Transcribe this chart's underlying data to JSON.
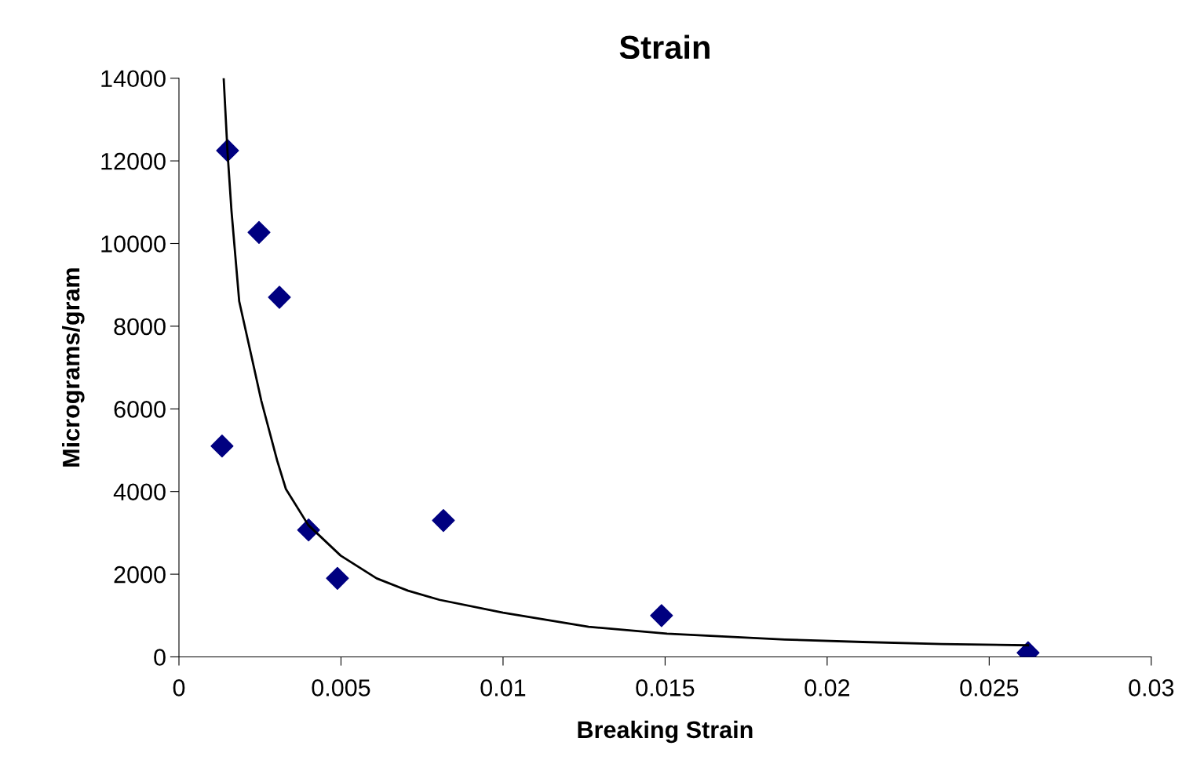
{
  "chart_data": {
    "type": "scatter",
    "title": "Strain",
    "xlabel": "Breaking Strain",
    "ylabel": "Micrograms/gram",
    "xlim": [
      0,
      0.03
    ],
    "xticks": [
      0,
      0.005,
      0.01,
      0.015,
      0.02,
      0.025,
      0.03
    ],
    "ylim": [
      0,
      14000
    ],
    "yticks": [
      0,
      2000,
      4000,
      6000,
      8000,
      10000,
      12000,
      14000
    ],
    "grid": false,
    "legend": false,
    "series": [
      {
        "color": "#000080",
        "marker": "diamond",
        "x": [
          0.00133,
          0.0015,
          0.00247,
          0.0031,
          0.004,
          0.00489,
          0.00816,
          0.01489,
          0.0262
        ],
        "values": [
          5100,
          12250,
          10270,
          8700,
          3070,
          1900,
          3300,
          1000,
          100
        ]
      },
      {
        "type": "line",
        "color": "#000000",
        "marker": "none",
        "line_style": "solid",
        "x": [
          0.00138,
          0.0015,
          0.00162,
          0.00186,
          0.00223,
          0.00254,
          0.00303,
          0.0033,
          0.00399,
          0.00499,
          0.0061,
          0.00707,
          0.00804,
          0.01,
          0.01264,
          0.01506,
          0.01869,
          0.0211,
          0.02354,
          0.0262
        ],
        "values": [
          14000,
          12200,
          10800,
          8600,
          7300,
          6200,
          4750,
          4060,
          3190,
          2450,
          1900,
          1600,
          1380,
          1070,
          730,
          560,
          420,
          360,
          310,
          280
        ]
      }
    ]
  }
}
